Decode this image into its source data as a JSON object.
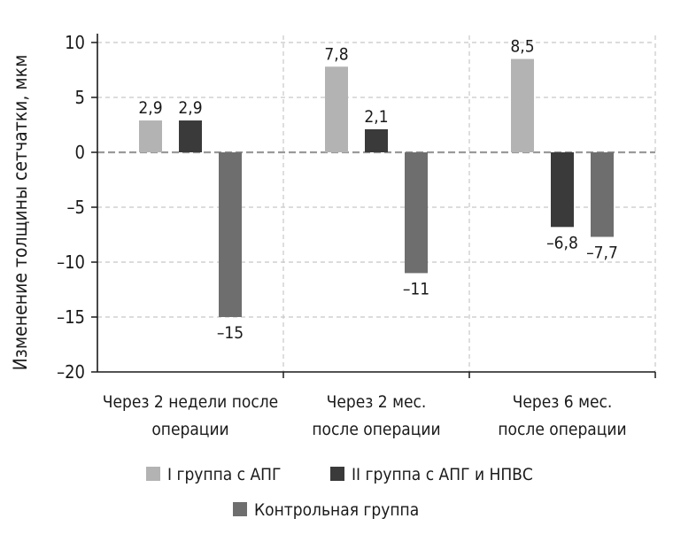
{
  "chart_data": {
    "type": "bar",
    "ylabel": "Изменение толщины сетчатки, мкм",
    "ylim": [
      -20,
      10
    ],
    "yticks": [
      10,
      5,
      0,
      -5,
      -10,
      -15,
      -20
    ],
    "ytick_labels": [
      "10",
      "5",
      "0",
      "–5",
      "–10",
      "–15",
      "–20"
    ],
    "grid": true,
    "legend_position": "bottom",
    "categories": [
      [
        "Через 2 недели после",
        "операции"
      ],
      [
        "Через 2 мес.",
        "после операции"
      ],
      [
        "Через 6 мес.",
        "после операции"
      ]
    ],
    "series": [
      {
        "name": "I группа с АПГ",
        "color": "#b3b3b3",
        "values": [
          2.9,
          7.8,
          8.5
        ],
        "labels": [
          "2,9",
          "7,8",
          "8,5"
        ]
      },
      {
        "name": "II группа с АПГ и НПВС",
        "color": "#3a3a3a",
        "values": [
          2.9,
          2.1,
          -6.8
        ],
        "labels": [
          "2,9",
          "2,1",
          "–6,8"
        ]
      },
      {
        "name": "Контрольная группа",
        "color": "#6e6e6e",
        "values": [
          -15,
          -11,
          -7.7
        ],
        "labels": [
          "–15",
          "–11",
          "–7,7"
        ]
      }
    ]
  }
}
